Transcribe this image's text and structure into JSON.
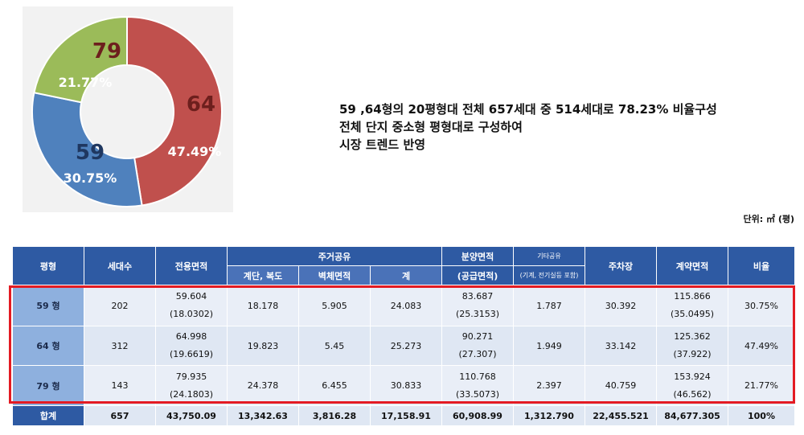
{
  "chart_data": {
    "type": "pie",
    "donut": true,
    "slices": [
      {
        "label": "64",
        "percent_label": "47.49%",
        "value": 47.49,
        "color": "#c0504d",
        "label_color": "#6d1f1d"
      },
      {
        "label": "59",
        "percent_label": "30.75%",
        "value": 30.75,
        "color": "#4f81bd",
        "label_color": "#1f3760"
      },
      {
        "label": "79",
        "percent_label": "21.77%",
        "value": 21.77,
        "color": "#9bbb59",
        "label_color": "#6d1f1d"
      }
    ]
  },
  "summary": {
    "line1": "59 ,64형의 20평형대 전체 657세대 중 514세대로 78.23% 비율구성",
    "line2": "전체 단지 중소형 평형대로 구성하여",
    "line3": "시장 트렌드 반영"
  },
  "unit_label": "단위: ㎡ (평)",
  "table": {
    "headers": {
      "type": "평형",
      "households": "세대수",
      "exclusive": "전용면적",
      "residential_common": "주거공유",
      "stair_corridor": "계단, 복도",
      "wall_area": "벽체면적",
      "subtotal": "계",
      "sale_area": "분양면적",
      "supply_area": "(공급면적)",
      "other_common": "기타공유",
      "other_common_note": "(기계, 전기실등 포함)",
      "parking": "주차장",
      "contract_area": "계약면적",
      "ratio": "비율"
    },
    "rows": [
      {
        "type": "59 형",
        "households": "202",
        "exclusive": "59.604",
        "exclusive_py": "(18.0302)",
        "stair": "18.178",
        "wall": "5.905",
        "subtotal": "24.083",
        "sale": "83.687",
        "sale_py": "(25.3153)",
        "other": "1.787",
        "parking": "30.392",
        "contract": "115.866",
        "contract_py": "(35.0495)",
        "ratio": "30.75%"
      },
      {
        "type": "64 형",
        "households": "312",
        "exclusive": "64.998",
        "exclusive_py": "(19.6619)",
        "stair": "19.823",
        "wall": "5.45",
        "subtotal": "25.273",
        "sale": "90.271",
        "sale_py": "(27.307)",
        "other": "1.949",
        "parking": "33.142",
        "contract": "125.362",
        "contract_py": "(37.922)",
        "ratio": "47.49%"
      },
      {
        "type": "79 형",
        "households": "143",
        "exclusive": "79.935",
        "exclusive_py": "(24.1803)",
        "stair": "24.378",
        "wall": "6.455",
        "subtotal": "30.833",
        "sale": "110.768",
        "sale_py": "(33.5073)",
        "other": "2.397",
        "parking": "40.759",
        "contract": "153.924",
        "contract_py": "(46.562)",
        "ratio": "21.77%"
      }
    ],
    "total": {
      "label": "합계",
      "households": "657",
      "exclusive": "43,750.09",
      "stair": "13,342.63",
      "wall": "3,816.28",
      "subtotal": "17,158.91",
      "sale": "60,908.99",
      "other": "1,312.790",
      "parking": "22,455.521",
      "contract": "84,677.305",
      "ratio": "100%"
    }
  }
}
